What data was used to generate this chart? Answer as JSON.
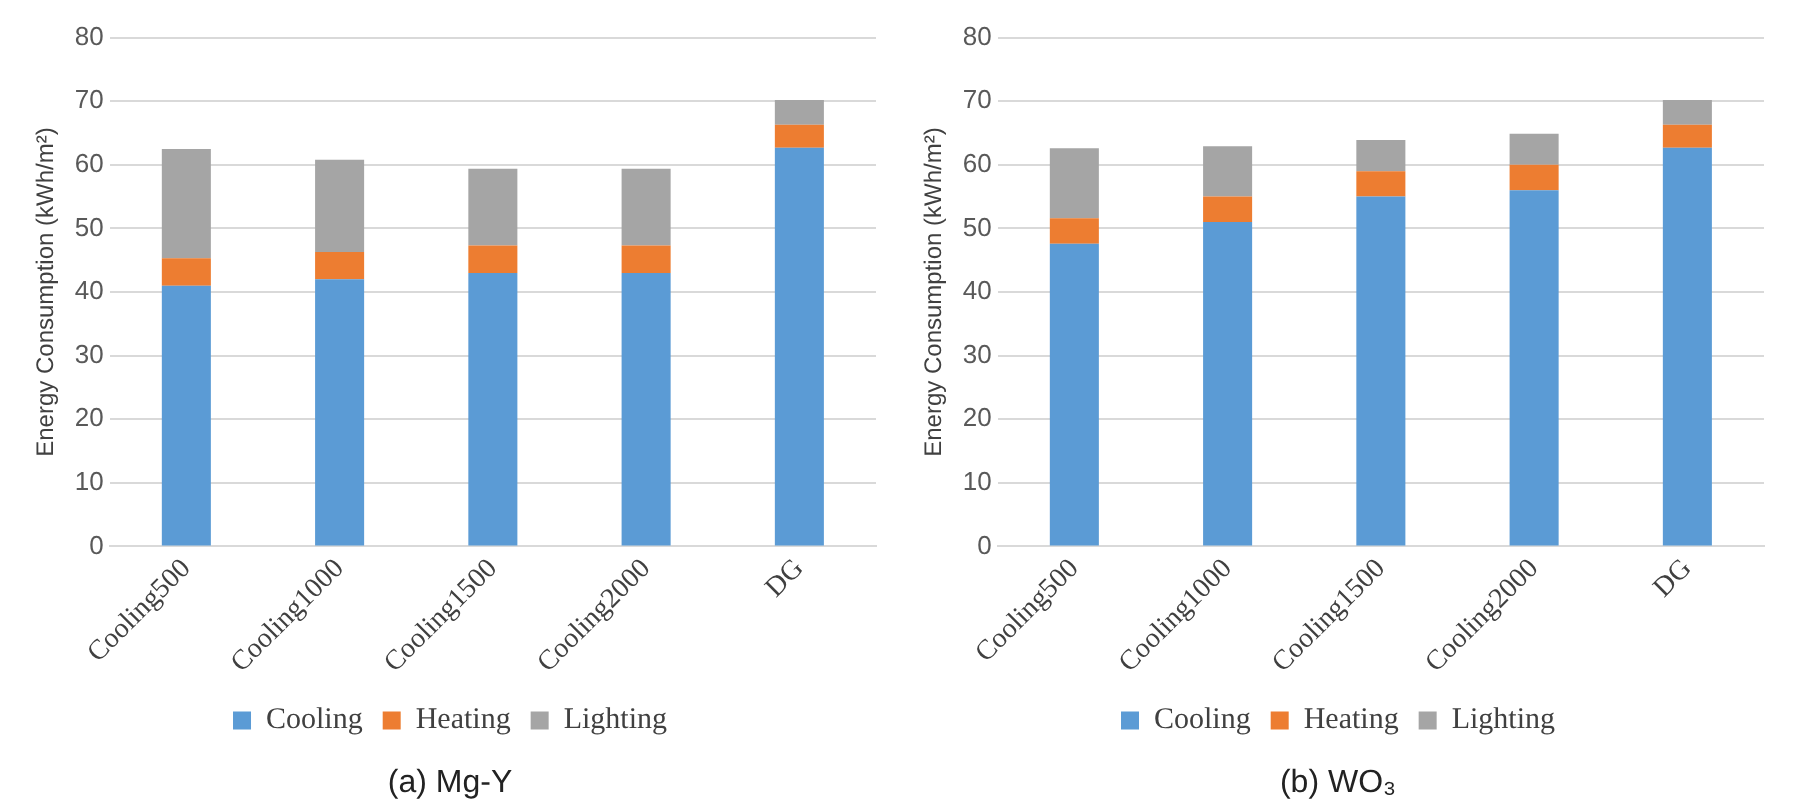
{
  "chart_data": [
    {
      "type": "bar",
      "title": "(a) Mg-Y",
      "ylabel": "Energy Consumption (kWh/m²)",
      "categories": [
        "Cooling500",
        "Cooling1000",
        "Cooling1500",
        "Cooling2000",
        "DG"
      ],
      "stacked": true,
      "series": [
        {
          "name": "Cooling",
          "color": "#5b9bd5",
          "values": [
            41,
            42,
            43,
            43,
            62.7
          ]
        },
        {
          "name": "Heating",
          "color": "#ed7d31",
          "values": [
            4.3,
            4.3,
            4.3,
            4.3,
            3.6
          ]
        },
        {
          "name": "Lighting",
          "color": "#a5a5a5",
          "values": [
            17.2,
            14.5,
            12.1,
            12.1,
            3.9
          ]
        }
      ],
      "ylim": [
        0,
        80
      ],
      "yticks": [
        0,
        10,
        20,
        30,
        40,
        50,
        60,
        70,
        80
      ],
      "grid": "y",
      "legend": "bottom"
    },
    {
      "type": "bar",
      "title": "(b) WO₃",
      "ylabel": "Energy Consumption (kWh/m²)",
      "categories": [
        "Cooling500",
        "Cooling1000",
        "Cooling1500",
        "Cooling2000",
        "DG"
      ],
      "stacked": true,
      "series": [
        {
          "name": "Cooling",
          "color": "#5b9bd5",
          "values": [
            47.6,
            51,
            55,
            56,
            62.7
          ]
        },
        {
          "name": "Heating",
          "color": "#ed7d31",
          "values": [
            4,
            4,
            4,
            4,
            3.6
          ]
        },
        {
          "name": "Lighting",
          "color": "#a5a5a5",
          "values": [
            11,
            7.9,
            4.9,
            4.9,
            3.9
          ]
        }
      ],
      "ylim": [
        0,
        80
      ],
      "yticks": [
        0,
        10,
        20,
        30,
        40,
        50,
        60,
        70,
        80
      ],
      "grid": "y",
      "legend": "bottom"
    }
  ]
}
